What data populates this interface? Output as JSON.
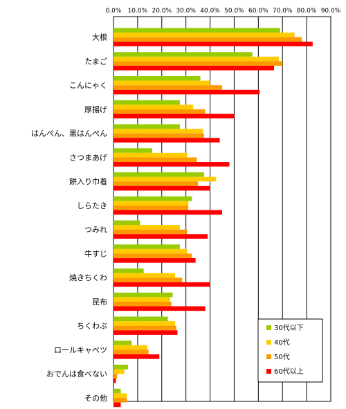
{
  "chart_data": {
    "type": "bar",
    "orientation": "horizontal",
    "categories": [
      "大根",
      "たまご",
      "こんにゃく",
      "厚揚げ",
      "はんぺん、黒はんぺん",
      "さつまあげ",
      "餅入り巾着",
      "しらたき",
      "つみれ",
      "牛すじ",
      "焼きちくわ",
      "昆布",
      "ちくわぶ",
      "ロールキャベツ",
      "おでんは食べない",
      "その他"
    ],
    "series": [
      {
        "name": "30代以下",
        "color": "#99cc00",
        "values": [
          69.0,
          57.5,
          36.0,
          27.5,
          27.5,
          16.0,
          37.5,
          32.5,
          11.0,
          27.5,
          12.5,
          24.5,
          22.5,
          7.5,
          6.0,
          3.0
        ]
      },
      {
        "name": "40代",
        "color": "#ffcc00",
        "values": [
          75.0,
          68.5,
          40.0,
          33.0,
          37.0,
          30.5,
          42.5,
          31.0,
          27.5,
          30.5,
          25.5,
          23.5,
          25.5,
          14.0,
          4.5,
          5.5
        ]
      },
      {
        "name": "50代",
        "color": "#ff9900",
        "values": [
          78.0,
          70.0,
          45.0,
          38.0,
          37.5,
          34.5,
          35.0,
          31.0,
          30.5,
          32.5,
          28.5,
          24.0,
          26.0,
          14.5,
          1.5,
          5.5
        ]
      },
      {
        "name": "60代以上",
        "color": "#ff0000",
        "values": [
          82.5,
          66.5,
          60.5,
          50.0,
          44.0,
          48.0,
          40.0,
          45.0,
          39.0,
          34.0,
          40.0,
          38.0,
          26.5,
          19.0,
          1.0,
          3.0
        ]
      }
    ],
    "xticks": [
      "0.0%",
      "10.0%",
      "20.0%",
      "30.0%",
      "40.0%",
      "50.0%",
      "60.0%",
      "70.0%",
      "80.0%",
      "90.0%"
    ],
    "xlim": [
      0,
      90
    ],
    "grid": true,
    "legend_position": "bottom-right"
  }
}
